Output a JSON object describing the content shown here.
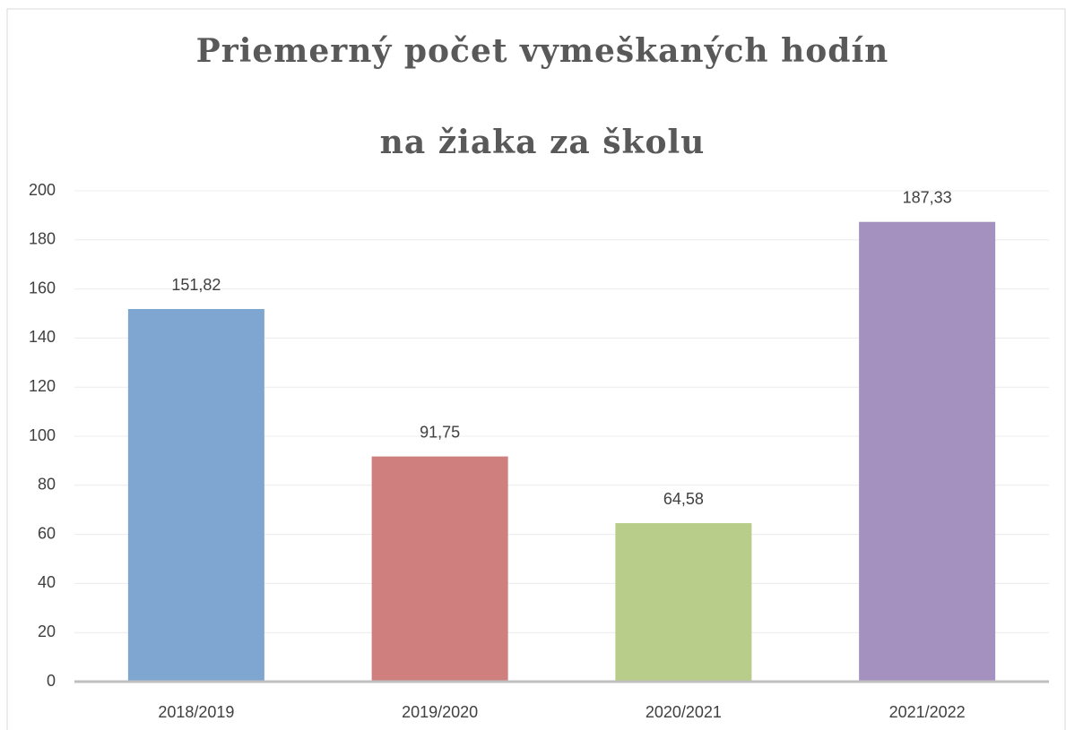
{
  "chart_data": {
    "type": "bar",
    "title": [
      "Priemerný počet vymeškaných hodín",
      "na žiaka za školu"
    ],
    "categories": [
      "2018/2019",
      "2019/2020",
      "2020/2021",
      "2021/2022"
    ],
    "values": [
      151.82,
      91.75,
      64.58,
      187.33
    ],
    "value_labels": [
      "151,82",
      "91,75",
      "64,58",
      "187,33"
    ],
    "colors": [
      "#7fa6d0",
      "#d07f7f",
      "#b9cd8b",
      "#a591bf"
    ],
    "ylim": [
      0,
      200
    ],
    "yticks": [
      0,
      20,
      40,
      60,
      80,
      100,
      120,
      140,
      160,
      180,
      200
    ],
    "grid": true
  }
}
